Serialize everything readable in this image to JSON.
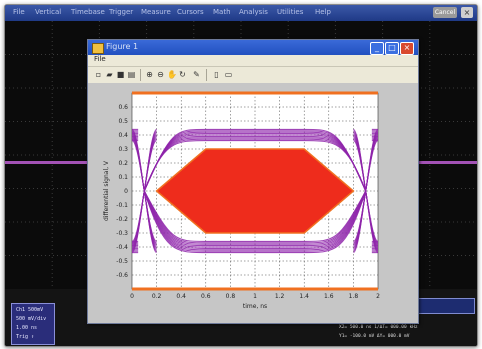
{
  "colors": {
    "eye_purple": "#8e24aa",
    "mask_red": "#ee2c1c",
    "mask_orange": "#f07020",
    "scope_background": "#0b0b0b",
    "figure_chrome": "#ece9d8"
  },
  "scope": {
    "menu_items": [
      "File",
      "Vertical",
      "Timebase",
      "Trigger",
      "Measure",
      "Cursors",
      "Math",
      "Analysis",
      "Utilities",
      "Help"
    ],
    "status_badge": "Cancel",
    "close_glyph": "×",
    "channel_box": [
      "Ch1 500mV",
      "500 mV/div",
      "1.00 ns",
      "Trig ↑"
    ],
    "readouts": [
      "X1= -100.0 ns   ΔT= 0.0000 µs",
      "X2= 500.0 ns   1/ΔT= 000.00 kHz",
      "Y1= -100.0 mV   ΔY= 000.0 mV"
    ]
  },
  "figure_window": {
    "title": "Figure 1",
    "menu": "File",
    "toolbar_icons": [
      "new-icon",
      "open-icon",
      "save-icon",
      "print-icon",
      "zoom-in-icon",
      "zoom-out-icon",
      "pan-icon",
      "rotate-icon",
      "data-cursor-icon",
      "colorbar-icon",
      "legend-icon"
    ],
    "buttons": {
      "minimize": "_",
      "maximize": "□",
      "close": "×"
    }
  },
  "chart_data": {
    "type": "eye-diagram",
    "xlabel": "time, ns",
    "ylabel": "differential signal, V",
    "xlim": [
      0,
      2
    ],
    "ylim": [
      -0.7,
      0.7
    ],
    "x_ticks": [
      "0",
      "0.2",
      "0.4",
      "0.6",
      "0.8",
      "1",
      "1.2",
      "1.4",
      "1.6",
      "1.8",
      "2"
    ],
    "y_ticks": [
      "0.6",
      "0.5",
      "0.4",
      "0.3",
      "0.2",
      "0.1",
      "0",
      "-0.1",
      "-0.2",
      "-0.3",
      "-0.4",
      "-0.5",
      "-0.6"
    ],
    "grid": true,
    "eye_levels": {
      "high": [
        0.36,
        0.44
      ],
      "low": [
        -0.44,
        -0.36
      ],
      "crossing_x": [
        0.1,
        1.9
      ]
    },
    "mask_polygon": [
      [
        0.2,
        0
      ],
      [
        0.6,
        0.3
      ],
      [
        1.4,
        0.3
      ],
      [
        1.8,
        0
      ],
      [
        1.4,
        -0.3
      ],
      [
        0.6,
        -0.3
      ]
    ],
    "limit_lines": [
      0.7,
      -0.7
    ]
  }
}
